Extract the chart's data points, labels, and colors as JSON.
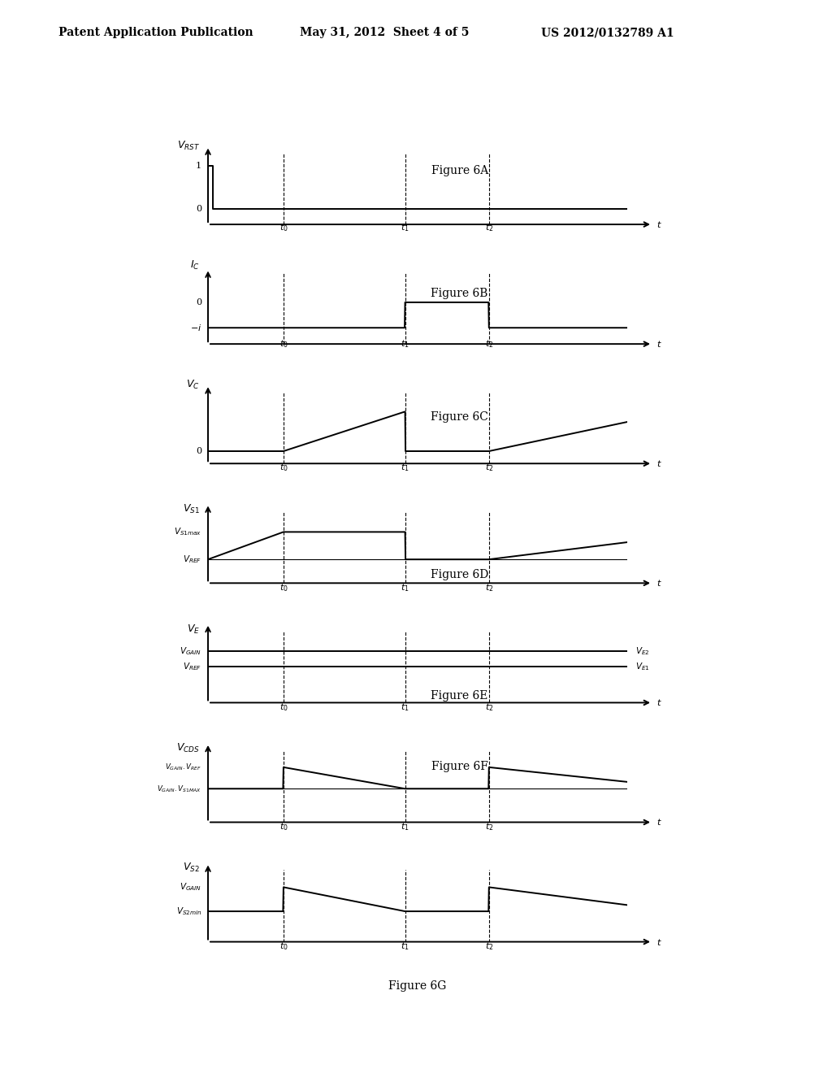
{
  "header_left": "Patent Application Publication",
  "header_mid": "May 31, 2012  Sheet 4 of 5",
  "header_right": "US 2012/0132789 A1",
  "background_color": "#ffffff",
  "T0": 0.18,
  "T1": 0.47,
  "T2": 0.67,
  "TEND": 1.0,
  "lw": 1.4,
  "lc": "#000000",
  "fig_label_fontsize": 10,
  "axis_label_fontsize": 9,
  "tick_label_fontsize": 8,
  "small_label_fontsize": 7.5,
  "time_label_fontsize": 8
}
